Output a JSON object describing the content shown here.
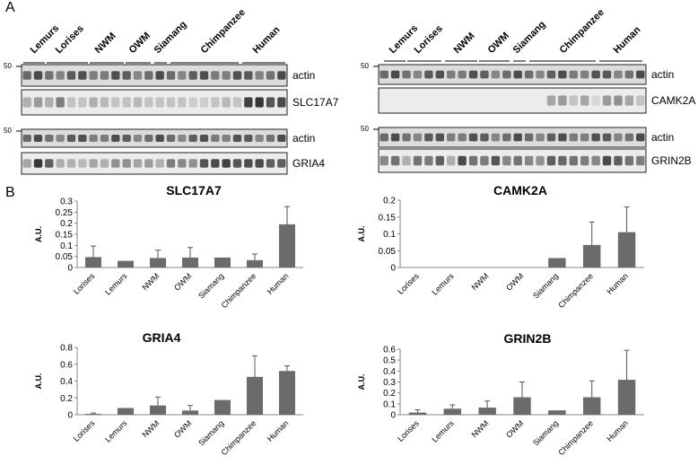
{
  "panels": {
    "a": "A",
    "b": "B"
  },
  "blots": {
    "left": {
      "groups": [
        "Lemurs",
        "Lorises",
        "NWM",
        "OWM",
        "Siamang",
        "Chimpanzee",
        "Human"
      ],
      "rows": [
        {
          "label": "actin",
          "marker": "50"
        },
        {
          "label": "SLC17A7",
          "marker": ""
        },
        {
          "label": "actin",
          "marker": "50"
        },
        {
          "label": "GRIA4",
          "marker": ""
        }
      ]
    },
    "right": {
      "groups": [
        "Lemurs",
        "Lorises",
        "NWM",
        "OWM",
        "Siamang",
        "Chimpanzee",
        "Human"
      ],
      "rows": [
        {
          "label": "actin",
          "marker": "50"
        },
        {
          "label": "CAMK2A",
          "marker": ""
        },
        {
          "label": "actin",
          "marker": "50"
        },
        {
          "label": "GRIN2B",
          "marker": ""
        }
      ]
    }
  },
  "chart_data": [
    {
      "type": "bar",
      "title": "SLC17A7",
      "ylabel": "A.U.",
      "categories": [
        "Lorises",
        "Lemurs",
        "NWM",
        "OWM",
        "Siamang",
        "Chimpanzee",
        "Human"
      ],
      "values": [
        0.047,
        0.03,
        0.043,
        0.045,
        0.045,
        0.033,
        0.195
      ],
      "errors": [
        0.05,
        0.0,
        0.035,
        0.045,
        0.0,
        0.028,
        0.08
      ],
      "ylim": [
        0,
        0.3
      ],
      "yticks": [
        "0",
        "0.05",
        "0.1",
        "0.15",
        "0.2",
        "0.25",
        "0.3"
      ],
      "color": "#6b6b6b"
    },
    {
      "type": "bar",
      "title": "CAMK2A",
      "ylabel": "A.U.",
      "categories": [
        "Lorises",
        "Lemurs",
        "NWM",
        "OWM",
        "Siamang",
        "Chimpanzee",
        "Human"
      ],
      "values": [
        0,
        0,
        0,
        0,
        0.028,
        0.067,
        0.105
      ],
      "errors": [
        0,
        0,
        0,
        0,
        0,
        0.068,
        0.075
      ],
      "ylim": [
        0,
        0.2
      ],
      "yticks": [
        "0",
        "0.05",
        "0.1",
        "0.15",
        "0.2"
      ],
      "color": "#6b6b6b"
    },
    {
      "type": "bar",
      "title": "GRIA4",
      "ylabel": "A.U.",
      "categories": [
        "Lorises",
        "Lemurs",
        "NWM",
        "OWM",
        "Siamang",
        "Chimpanzee",
        "Human"
      ],
      "values": [
        0.01,
        0.08,
        0.11,
        0.05,
        0.175,
        0.45,
        0.52
      ],
      "errors": [
        0.01,
        0.0,
        0.1,
        0.06,
        0.0,
        0.25,
        0.06
      ],
      "ylim": [
        0,
        0.8
      ],
      "yticks": [
        "0",
        "0.2",
        "0.4",
        "0.6",
        "0.8"
      ],
      "color": "#6b6b6b"
    },
    {
      "type": "bar",
      "title": "GRIN2B",
      "ylabel": "A.U.",
      "categories": [
        "Lorises",
        "Lemurs",
        "NWM",
        "OWM",
        "Siamang",
        "Chimpanzee",
        "Human"
      ],
      "values": [
        0.02,
        0.055,
        0.065,
        0.16,
        0.04,
        0.16,
        0.32
      ],
      "errors": [
        0.025,
        0.035,
        0.06,
        0.14,
        0.0,
        0.15,
        0.27
      ],
      "ylim": [
        0,
        0.6
      ],
      "yticks": [
        "0",
        "0.1",
        "0.2",
        "0.3",
        "0.4",
        "0.5",
        "0.6"
      ],
      "color": "#6b6b6b"
    }
  ]
}
